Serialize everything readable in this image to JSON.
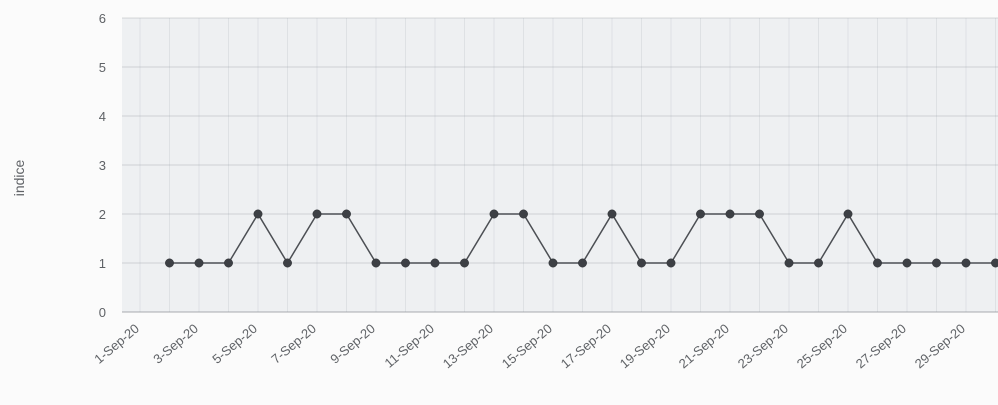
{
  "chart_data": {
    "type": "line",
    "title": "",
    "xlabel": "",
    "ylabel": "indice",
    "ylim": [
      0,
      6
    ],
    "yticks": [
      "0",
      "1",
      "2",
      "3",
      "4",
      "5",
      "6"
    ],
    "x": [
      "1-Sep-20",
      "2-Sep-20",
      "3-Sep-20",
      "4-Sep-20",
      "5-Sep-20",
      "6-Sep-20",
      "7-Sep-20",
      "8-Sep-20",
      "9-Sep-20",
      "10-Sep-20",
      "11-Sep-20",
      "12-Sep-20",
      "13-Sep-20",
      "14-Sep-20",
      "15-Sep-20",
      "16-Sep-20",
      "17-Sep-20",
      "18-Sep-20",
      "19-Sep-20",
      "20-Sep-20",
      "21-Sep-20",
      "22-Sep-20",
      "23-Sep-20",
      "24-Sep-20",
      "25-Sep-20",
      "26-Sep-20",
      "27-Sep-20",
      "28-Sep-20",
      "29-Sep-20",
      "30-Sep-20"
    ],
    "xtick_labels": [
      "1-Sep-20",
      "3-Sep-20",
      "5-Sep-20",
      "7-Sep-20",
      "9-Sep-20",
      "11-Sep-20",
      "13-Sep-20",
      "15-Sep-20",
      "17-Sep-20",
      "19-Sep-20",
      "21-Sep-20",
      "23-Sep-20",
      "25-Sep-20",
      "27-Sep-20",
      "29-Sep-20"
    ],
    "series": [
      {
        "values": [
          null,
          1,
          1,
          1,
          2,
          1,
          2,
          2,
          1,
          1,
          1,
          1,
          2,
          2,
          1,
          1,
          2,
          1,
          1,
          2,
          2,
          2,
          1,
          1,
          2,
          1,
          1,
          1,
          1,
          1
        ]
      }
    ],
    "grid": true,
    "legend": "none"
  },
  "style": {
    "background": "#fbfbfb",
    "plot_background": "#eef0f2",
    "grid_color": "#8f9399",
    "line_color": "#4c4f54",
    "point_color": "#3d4045",
    "text_color": "#5f6266"
  }
}
